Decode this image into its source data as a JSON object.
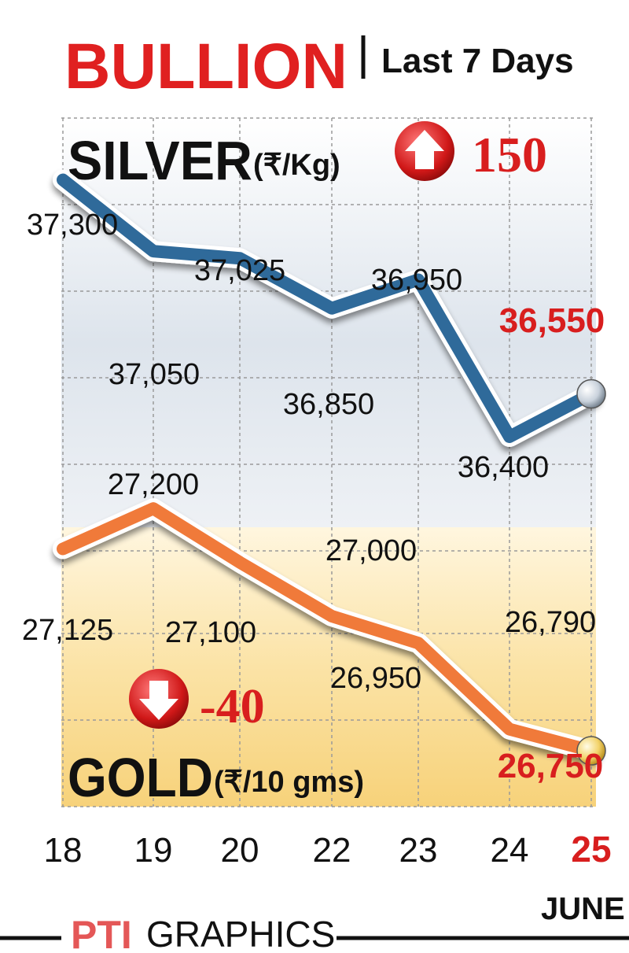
{
  "header": {
    "title": "BULLION",
    "subtitle": "Last 7 Days"
  },
  "silver_label": {
    "name": "SILVER",
    "unit": "(₹/Kg)",
    "change": "150"
  },
  "gold_label": {
    "name": "GOLD",
    "unit": "(₹/10 gms)",
    "change": "-40"
  },
  "footer": {
    "source": "PTI",
    "source_suffix": "GRAPHICS",
    "month": "JUNE"
  },
  "colors": {
    "title_red": "#e02020",
    "silver_line": "#2f6a9a",
    "gold_line": "#f07a3a",
    "highlight_red": "#d81e1e",
    "grid": "#9a9a9a"
  },
  "chart_data": {
    "type": "line",
    "title": "BULLION",
    "subtitle": "Last 7 Days",
    "categories": [
      "18",
      "19",
      "20",
      "22",
      "23",
      "24",
      "25"
    ],
    "xlabel": "JUNE",
    "series": [
      {
        "name": "SILVER",
        "unit": "(₹/Kg)",
        "values": [
          37300,
          37050,
          37025,
          36850,
          36950,
          36400,
          36550
        ],
        "labels": [
          "37,300",
          "37,050",
          "37,025",
          "36,850",
          "36,950",
          "36,400",
          "36,550"
        ],
        "change": "150",
        "ylim": [
          36000,
          37500
        ]
      },
      {
        "name": "GOLD",
        "unit": "(₹/10 gms)",
        "values": [
          27125,
          27200,
          27100,
          27000,
          26950,
          26790,
          26750
        ],
        "labels": [
          "27,125",
          "27,200",
          "27,100",
          "27,000",
          "26,950",
          "26,790",
          "26,750"
        ],
        "change": "-40",
        "ylim": [
          26500,
          27500
        ]
      }
    ],
    "grid": true
  }
}
